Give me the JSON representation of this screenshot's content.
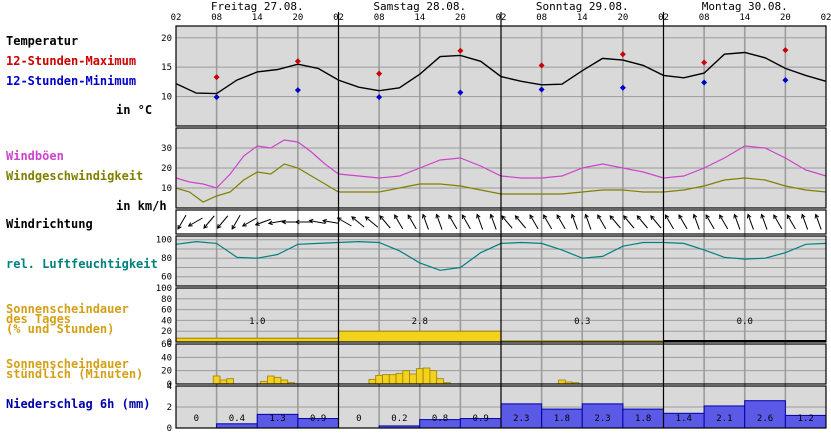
{
  "days": [
    {
      "label": "Freitag 27.08."
    },
    {
      "label": "Samstag 28.08."
    },
    {
      "label": "Sonntag 29.08."
    },
    {
      "label": "Montag 30.08."
    }
  ],
  "hour_ticks": [
    "02",
    "08",
    "14",
    "20"
  ],
  "end_tick": "02",
  "colors": {
    "panel_bg": "#d9d9d9",
    "grid": "#9c9c9c",
    "temperature_line": "#000000",
    "max_marker": "#cc0000",
    "min_marker": "#0000cc",
    "gusts": "#cc44cc",
    "wind_speed": "#808000",
    "humidity": "#008080",
    "sunshine_fill": "#f2d21c",
    "sunshine_stroke": "#a08000",
    "precip_fill": "#5a5ae6",
    "precip_stroke": "#0000aa",
    "label_temperature": "#000000",
    "label_max": "#cc0000",
    "label_min": "#0000cc",
    "label_gusts": "#cc44cc",
    "label_wind": "#808000",
    "label_humidity": "#008080",
    "label_sunshine": "#d4a017",
    "label_precip": "#0000aa"
  },
  "labels": {
    "temperature": "Temperatur",
    "max12": "12-Stunden-Maximum",
    "min12": "12-Stunden-Minimum",
    "unit_c": "in °C",
    "gusts": "Windböen",
    "wind_speed": "Windgeschwindigkeit",
    "unit_kmh": "in km/h",
    "wind_direction": "Windrichtung",
    "humidity": "rel. Luftfeuchtigkeit",
    "sunshine_daily_1": "Sonnenscheindauer",
    "sunshine_daily_2": "des Tages",
    "sunshine_daily_3": "(% und Stunden)",
    "sunshine_hourly_1": "Sonnenscheindauer",
    "sunshine_hourly_2": "stündlich (Minuten)",
    "precip": "Niederschlag 6h (mm)"
  },
  "chart_data": [
    {
      "type": "line",
      "name": "temperature",
      "x_unit": "hours since Fri 27.08. 02:00",
      "ylim": [
        5,
        22
      ],
      "yticks": [
        "10",
        "15",
        "20"
      ],
      "x": [
        0,
        3,
        6,
        9,
        12,
        15,
        18,
        21,
        24,
        27,
        30,
        33,
        36,
        39,
        42,
        45,
        48,
        51,
        54,
        57,
        60,
        63,
        66,
        69,
        72,
        75,
        78,
        81,
        84,
        87,
        90,
        93,
        96
      ],
      "y": [
        12.2,
        10.6,
        10.5,
        12.8,
        14.2,
        14.6,
        15.5,
        14.8,
        12.8,
        11.6,
        11.0,
        11.5,
        13.8,
        16.8,
        17.0,
        16.0,
        13.4,
        12.6,
        12.0,
        12.1,
        14.4,
        16.5,
        16.2,
        15.3,
        13.6,
        13.2,
        14.0,
        17.2,
        17.5,
        16.6,
        14.8,
        13.6,
        12.6
      ],
      "max12": [
        {
          "x": 6,
          "y": 13.3
        },
        {
          "x": 18,
          "y": 16.0
        },
        {
          "x": 30,
          "y": 13.9
        },
        {
          "x": 42,
          "y": 17.8
        },
        {
          "x": 54,
          "y": 15.3
        },
        {
          "x": 66,
          "y": 17.2
        },
        {
          "x": 78,
          "y": 15.8
        },
        {
          "x": 90,
          "y": 17.9
        }
      ],
      "min12": [
        {
          "x": 6,
          "y": 9.9
        },
        {
          "x": 18,
          "y": 11.1
        },
        {
          "x": 30,
          "y": 9.9
        },
        {
          "x": 42,
          "y": 10.7
        },
        {
          "x": 54,
          "y": 11.2
        },
        {
          "x": 66,
          "y": 11.5
        },
        {
          "x": 78,
          "y": 12.4
        },
        {
          "x": 90,
          "y": 12.8
        }
      ]
    },
    {
      "type": "line",
      "name": "wind",
      "x_unit": "hours since Fri 27.08. 02:00",
      "ylim": [
        0,
        40
      ],
      "yticks": [
        "10",
        "20",
        "30"
      ],
      "series": [
        {
          "name": "Windböen",
          "x": [
            0,
            2,
            4,
            6,
            8,
            10,
            12,
            14,
            16,
            18,
            20,
            22,
            24,
            27,
            30,
            33,
            36,
            39,
            42,
            45,
            48,
            51,
            54,
            57,
            60,
            63,
            66,
            69,
            72,
            75,
            78,
            81,
            84,
            87,
            90,
            93,
            96
          ],
          "values": [
            15,
            13,
            12,
            10,
            17,
            26,
            31,
            30,
            34,
            33,
            28,
            22,
            17,
            16,
            15,
            16,
            20,
            24,
            25,
            21,
            16,
            15,
            15,
            16,
            20,
            22,
            20,
            18,
            15,
            16,
            20,
            25,
            31,
            30,
            25,
            19,
            16
          ]
        },
        {
          "name": "Windgeschwindigkeit",
          "x": [
            0,
            2,
            4,
            6,
            8,
            10,
            12,
            14,
            16,
            18,
            20,
            22,
            24,
            27,
            30,
            33,
            36,
            39,
            42,
            45,
            48,
            51,
            54,
            57,
            60,
            63,
            66,
            69,
            72,
            75,
            78,
            81,
            84,
            87,
            90,
            93,
            96
          ],
          "values": [
            10,
            8,
            3,
            6,
            8,
            14,
            18,
            17,
            22,
            20,
            16,
            12,
            8,
            8,
            8,
            10,
            12,
            12,
            11,
            9,
            7,
            7,
            7,
            7,
            8,
            9,
            9,
            8,
            8,
            9,
            11,
            14,
            15,
            14,
            11,
            9,
            8
          ]
        }
      ]
    },
    {
      "type": "line",
      "name": "relative humidity",
      "x_unit": "hours since Fri 27.08. 02:00",
      "ylim": [
        50,
        104
      ],
      "yticks": [
        "60",
        "80",
        "100"
      ],
      "x": [
        0,
        3,
        6,
        9,
        12,
        15,
        18,
        21,
        24,
        27,
        30,
        33,
        36,
        39,
        42,
        45,
        48,
        51,
        54,
        57,
        60,
        63,
        66,
        69,
        72,
        75,
        78,
        81,
        84,
        87,
        90,
        93,
        96
      ],
      "y": [
        95,
        98,
        96,
        81,
        80,
        84,
        95,
        96,
        97,
        98,
        97,
        88,
        75,
        67,
        70,
        86,
        96,
        97,
        96,
        89,
        80,
        82,
        93,
        97,
        97,
        96,
        89,
        81,
        79,
        80,
        86,
        95,
        96
      ]
    },
    {
      "type": "bar",
      "name": "daily sunshine",
      "categories": [
        "Freitag 27.08.",
        "Samstag 28.08.",
        "Sonntag 29.08.",
        "Montag 30.08."
      ],
      "values": [
        1.0,
        2.8,
        0.3,
        0.0
      ],
      "percent": [
        7,
        20,
        2,
        0
      ],
      "value_labels": [
        "1.0",
        "2.8",
        "0.3",
        "0.0"
      ],
      "ylim": [
        0,
        100
      ],
      "yticks": [
        "0",
        "20",
        "40",
        "60",
        "80",
        "100"
      ]
    },
    {
      "type": "bar",
      "name": "hourly sunshine minutes",
      "x_unit": "hours since Fri 27.08. 02:00",
      "ylim": [
        0,
        60
      ],
      "yticks": [
        "0",
        "20",
        "40",
        "60"
      ],
      "x": [
        6,
        7,
        8,
        13,
        14,
        15,
        16,
        17,
        29,
        30,
        31,
        32,
        33,
        34,
        35,
        36,
        37,
        38,
        39,
        40,
        57,
        58,
        59
      ],
      "values": [
        12,
        6,
        8,
        4,
        12,
        10,
        6,
        2,
        7,
        13,
        14,
        14,
        16,
        20,
        15,
        23,
        24,
        20,
        8,
        2,
        6,
        3,
        2
      ]
    },
    {
      "type": "bar",
      "name": "precipitation 6h",
      "categories": [
        "02-08",
        "08-14",
        "14-20",
        "20-02",
        "02-08",
        "08-14",
        "14-20",
        "20-02",
        "02-08",
        "08-14",
        "14-20",
        "20-02",
        "02-08",
        "08-14",
        "14-20",
        "20-02"
      ],
      "values": [
        0,
        0.4,
        1.3,
        0.9,
        0,
        0.2,
        0.8,
        0.9,
        2.3,
        1.8,
        2.3,
        1.8,
        1.4,
        2.1,
        2.6,
        1.2
      ],
      "value_labels": [
        "0",
        "0.4",
        "1.3",
        "0.9",
        "0",
        "0.2",
        "0.8",
        "0.9",
        "2.3",
        "1.8",
        "2.3",
        "1.8",
        "1.4",
        "2.1",
        "2.6",
        "1.2"
      ],
      "ylim": [
        0,
        4
      ],
      "yticks": [
        "0",
        "2",
        "4"
      ]
    },
    {
      "type": "table",
      "name": "wind direction (arrow glyphs)",
      "x_unit": "hours since Fri 27.08. 02:00",
      "x": [
        0,
        2,
        4,
        6,
        8,
        10,
        12,
        14,
        16,
        18,
        20,
        22,
        24,
        26,
        28,
        30,
        32,
        34,
        36,
        38,
        40,
        42,
        44,
        46,
        48,
        50,
        52,
        54,
        56,
        58,
        60,
        62,
        64,
        66,
        68,
        70,
        72,
        74,
        76,
        78,
        80,
        82,
        84,
        86,
        88,
        90,
        92,
        94,
        96
      ],
      "direction_deg": [
        30,
        60,
        40,
        40,
        30,
        60,
        70,
        80,
        90,
        90,
        100,
        100,
        120,
        130,
        130,
        140,
        150,
        150,
        160,
        160,
        150,
        150,
        160,
        160,
        140,
        140,
        150,
        150,
        150,
        160,
        160,
        150,
        140,
        140,
        140,
        140,
        150,
        150,
        160,
        150,
        150,
        160,
        160,
        160,
        150,
        150,
        160,
        160,
        150
      ]
    }
  ]
}
